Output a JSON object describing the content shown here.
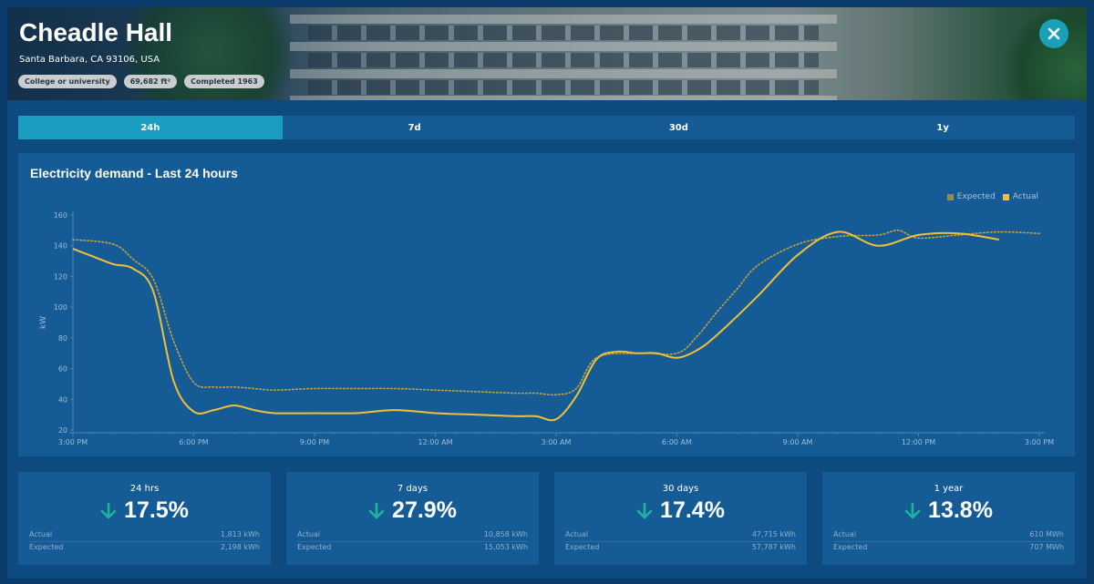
{
  "building": {
    "name": "Cheadle Hall",
    "address": "Santa Barbara, CA 93106, USA",
    "tags": [
      "College or university",
      "69,682 ft²",
      "Completed 1963"
    ]
  },
  "close_icon": "close-icon",
  "tabs": [
    {
      "label": "24h",
      "active": true
    },
    {
      "label": "7d",
      "active": false
    },
    {
      "label": "30d",
      "active": false
    },
    {
      "label": "1y",
      "active": false
    }
  ],
  "colors": {
    "accent": "#1a9dc0",
    "actual": "#f2c037",
    "expected": "#c9a23a",
    "decrease": "#1fb3a0"
  },
  "chart_data": {
    "type": "line",
    "title": "Electricity demand - Last 24 hours",
    "ylabel": "kW",
    "ylim": [
      20,
      160
    ],
    "yticks": [
      20,
      40,
      60,
      80,
      100,
      120,
      140,
      160
    ],
    "xlim": [
      0,
      24
    ],
    "x_ticks": [
      {
        "x": 0,
        "label": "3:00 PM"
      },
      {
        "x": 3,
        "label": "6:00 PM"
      },
      {
        "x": 6,
        "label": "9:00 PM"
      },
      {
        "x": 9,
        "label": "12:00 AM"
      },
      {
        "x": 12,
        "label": "3:00 AM"
      },
      {
        "x": 15,
        "label": "6:00 AM"
      },
      {
        "x": 18,
        "label": "9:00 AM"
      },
      {
        "x": 21,
        "label": "12:00 PM"
      },
      {
        "x": 24,
        "label": "3:00 PM"
      }
    ],
    "legend": [
      "Expected",
      "Actual"
    ],
    "legend_position": "top-right",
    "series": [
      {
        "name": "Expected",
        "style": "dotted",
        "x": [
          0,
          1,
          1.5,
          2,
          2.5,
          3,
          3.5,
          4,
          4.5,
          5,
          6,
          7,
          8,
          9,
          10,
          11,
          11.5,
          12,
          12.5,
          13,
          14,
          15,
          15.5,
          16,
          16.5,
          17,
          18,
          19,
          20,
          20.5,
          21,
          22,
          23,
          24
        ],
        "y": [
          144,
          141,
          131,
          118,
          78,
          51,
          48,
          48,
          47,
          46,
          47,
          47,
          47,
          46,
          45,
          44,
          44,
          43,
          47,
          67,
          70,
          70,
          81,
          97,
          112,
          127,
          141,
          146,
          147,
          150,
          145,
          147,
          149,
          148
        ]
      },
      {
        "name": "Actual",
        "style": "solid",
        "x": [
          0,
          0.5,
          1,
          1.5,
          2,
          2.5,
          3,
          3.5,
          4,
          4.5,
          5,
          6,
          7,
          8,
          9,
          10,
          11,
          11.5,
          12,
          12.5,
          13,
          13.5,
          14,
          14.5,
          15,
          15.5,
          16,
          17,
          18,
          19,
          20,
          21,
          22,
          23
        ],
        "y": [
          138,
          133,
          128,
          125,
          110,
          52,
          32,
          33,
          36,
          33,
          31,
          31,
          31,
          33,
          31,
          30,
          29,
          29,
          27,
          42,
          66,
          71,
          70,
          70,
          67,
          72,
          82,
          107,
          134,
          149,
          140,
          147,
          148,
          144
        ]
      }
    ]
  },
  "stats": [
    {
      "period": "24 hrs",
      "pct": "17.5%",
      "actual_label": "Actual",
      "actual": "1,813 kWh",
      "expected_label": "Expected",
      "expected": "2,198 kWh"
    },
    {
      "period": "7 days",
      "pct": "27.9%",
      "actual_label": "Actual",
      "actual": "10,858 kWh",
      "expected_label": "Expected",
      "expected": "15,053 kWh"
    },
    {
      "period": "30 days",
      "pct": "17.4%",
      "actual_label": "Actual",
      "actual": "47,715 kWh",
      "expected_label": "Expected",
      "expected": "57,787 kWh"
    },
    {
      "period": "1 year",
      "pct": "13.8%",
      "actual_label": "Actual",
      "actual": "610 MWh",
      "expected_label": "Expected",
      "expected": "707 MWh"
    }
  ]
}
